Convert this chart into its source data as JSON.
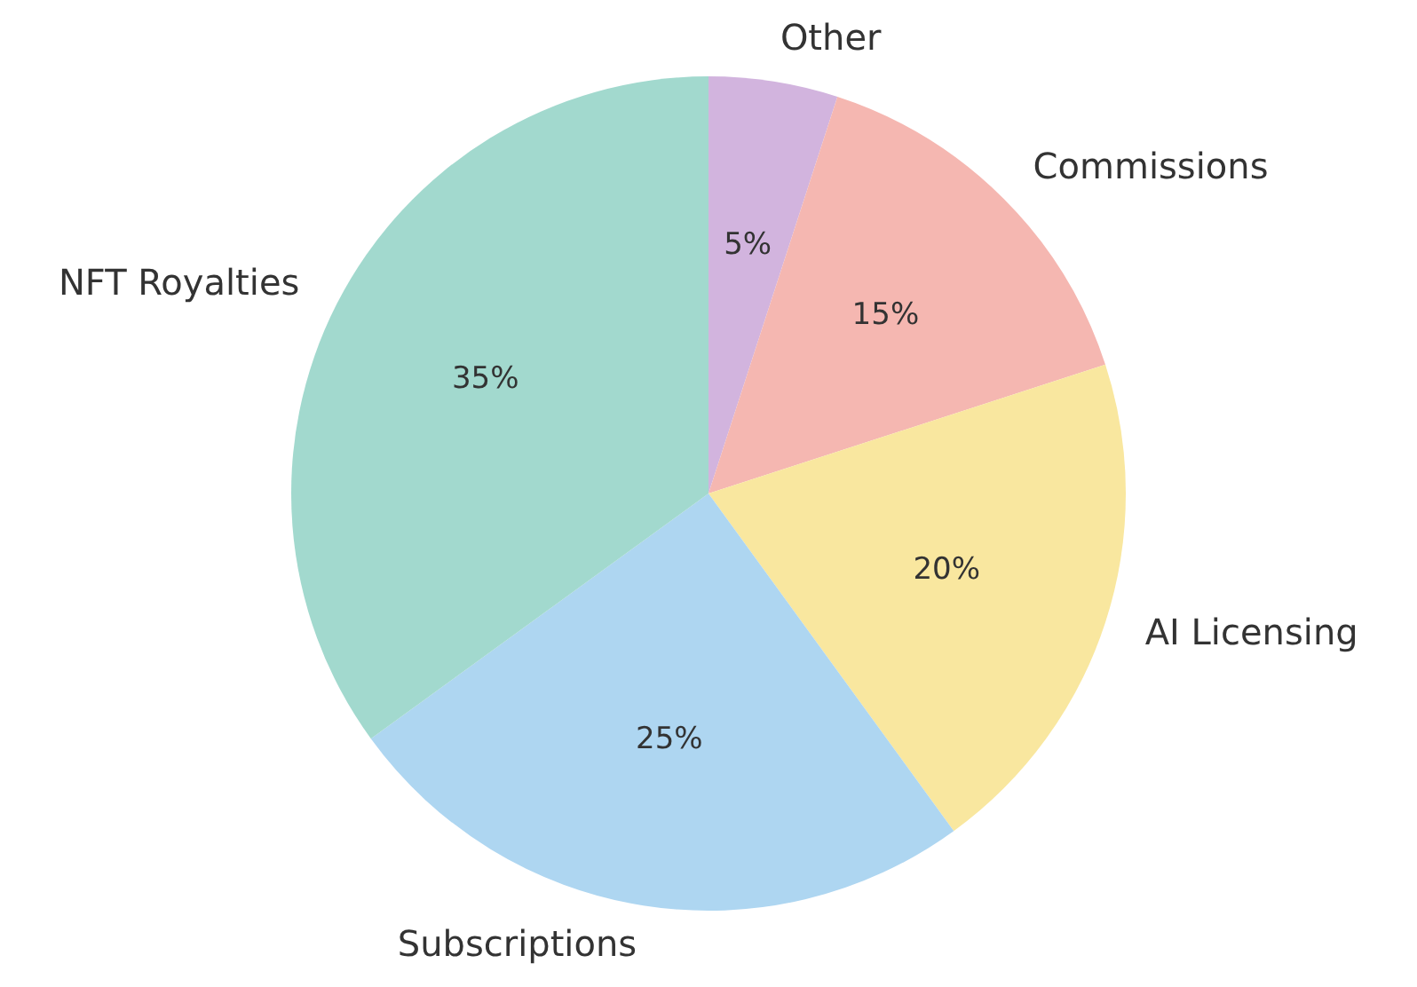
{
  "chart_data": {
    "type": "pie",
    "categories": [
      "Other",
      "Commissions",
      "AI Licensing",
      "Subscriptions",
      "NFT Royalties"
    ],
    "values": [
      5,
      15,
      20,
      25,
      35
    ],
    "value_labels": [
      "5%",
      "15%",
      "20%",
      "25%",
      "35%"
    ],
    "colors": [
      "#d2b4de",
      "#f5b7b1",
      "#f9e79f",
      "#aed6f1",
      "#a2d9ce"
    ],
    "legend": false
  }
}
